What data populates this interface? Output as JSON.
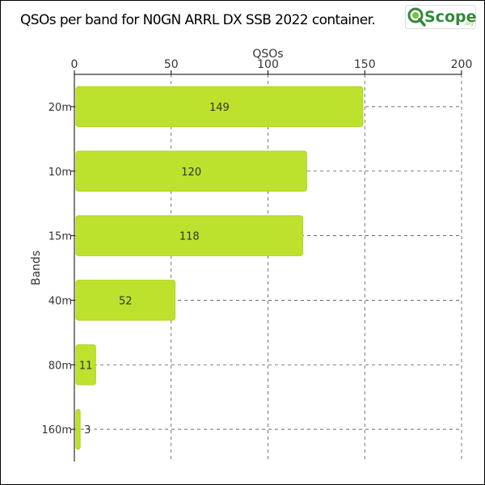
{
  "title": "QSOs per band for N0GN ARRL DX SSB 2022 container.",
  "logo": {
    "main": "Scope",
    "suffix": ".org",
    "icon": "magnifier-q-icon"
  },
  "colors": {
    "bar": "#bce22e",
    "bar_stroke": "#aed41f",
    "grid": "#555555",
    "axis": "#000000",
    "text": "#333333",
    "logo_green": "#2e8b3a",
    "logo_light": "#7bc043"
  },
  "chart_data": {
    "type": "bar",
    "orientation": "horizontal",
    "title": "QSOs per band for N0GN ARRL DX SSB 2022 container.",
    "xlabel": "QSOs",
    "ylabel": "Bands",
    "x_axis_position": "top",
    "xlim": [
      0,
      200
    ],
    "xticks": [
      0,
      50,
      100,
      150,
      200
    ],
    "categories": [
      "20m",
      "10m",
      "15m",
      "40m",
      "80m",
      "160m"
    ],
    "values": [
      149,
      120,
      118,
      52,
      11,
      3
    ],
    "data_labels": [
      "149",
      "120",
      "118",
      "52",
      "11",
      "3"
    ],
    "grid": true
  }
}
